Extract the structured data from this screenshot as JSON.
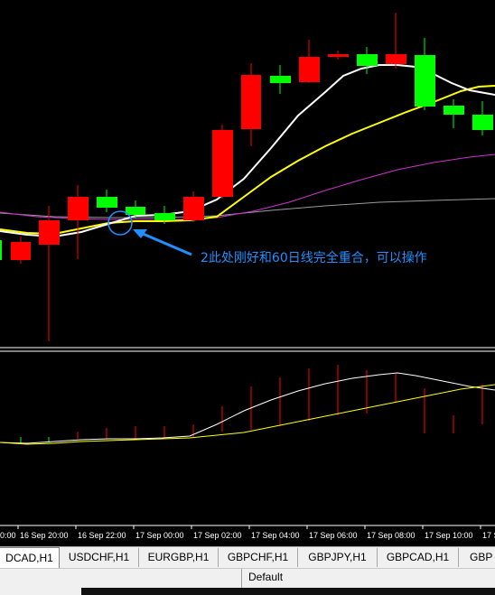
{
  "annotation": {
    "text": "2此处刚好和60日线完全重合，可以操作"
  },
  "time_axis": {
    "labels": [
      "0:00",
      "16 Sep 20:00",
      "16 Sep 22:00",
      "17 Sep 00:00",
      "17 Sep 02:00",
      "17 Sep 04:00",
      "17 Sep 06:00",
      "17 Sep 08:00",
      "17 Sep 10:00",
      "17 Se"
    ]
  },
  "tabs": [
    {
      "label": "DCAD,H1",
      "active": true
    },
    {
      "label": "USDCHF,H1",
      "active": false
    },
    {
      "label": "EURGBP,H1",
      "active": false
    },
    {
      "label": "GBPCHF,H1",
      "active": false
    },
    {
      "label": "GBPJPY,H1",
      "active": false
    },
    {
      "label": "GBPCAD,H1",
      "active": false
    },
    {
      "label": "GBP",
      "active": false
    }
  ],
  "status": {
    "profile": "Default"
  },
  "colors": {
    "bull": "#00ff00",
    "bear": "#ff0000",
    "ma_fast": "#ffffff",
    "ma_mid": "#ffff00",
    "ma_slow": "#cc33cc",
    "ma_long": "#aaaaaa",
    "annotation": "#1e90ff"
  }
}
